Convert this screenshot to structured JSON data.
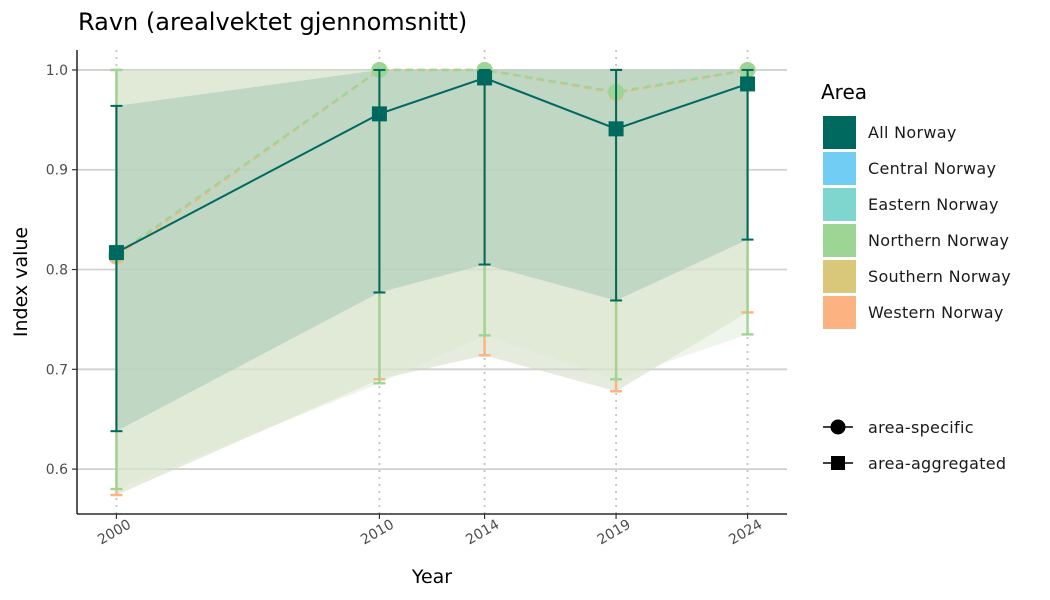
{
  "chart_data": {
    "type": "line",
    "title": "Ravn (arealvektet gjennomsnitt)",
    "xlabel": "Year",
    "ylabel": "Index value",
    "x": [
      2000,
      2010,
      2014,
      2019,
      2024
    ],
    "x_tick_labels": [
      "2000",
      "2010",
      "2014",
      "2019",
      "2024"
    ],
    "y_ticks": [
      0.6,
      0.7,
      0.8,
      0.9,
      1.0
    ],
    "y_tick_labels": [
      "0.6",
      "0.7",
      "0.8",
      "0.9",
      "1.0"
    ],
    "xlim": [
      1998.5,
      2025.5
    ],
    "ylim": [
      0.555,
      1.02
    ],
    "grid": "horizontal major lines; dotted vertical lines at data years",
    "legend": {
      "title": "Area",
      "position": "right",
      "areas": [
        {
          "name": "All Norway",
          "color": "#00695f"
        },
        {
          "name": "Central Norway",
          "color": "#72cdf4"
        },
        {
          "name": "Eastern Norway",
          "color": "#7fd6cf"
        },
        {
          "name": "Northern Norway",
          "color": "#9dd595"
        },
        {
          "name": "Southern Norway",
          "color": "#d9c87a"
        },
        {
          "name": "Western Norway",
          "color": "#fdb281"
        }
      ],
      "shapes": [
        {
          "label": "area-specific",
          "shape": "circle"
        },
        {
          "label": "area-aggregated",
          "shape": "square"
        }
      ]
    },
    "series": [
      {
        "name": "All Norway",
        "kind": "area-aggregated",
        "color": "#00695f",
        "values": [
          0.817,
          0.956,
          0.992,
          0.941,
          0.986
        ],
        "lower": [
          0.638,
          0.777,
          0.805,
          0.769,
          0.83
        ],
        "upper": [
          0.964,
          1.0,
          1.0,
          1.0,
          1.0
        ]
      },
      {
        "name": "Northern Norway",
        "kind": "area-specific",
        "color": "#9dd595",
        "values": [
          0.815,
          1.0,
          1.0,
          0.978,
          1.0
        ],
        "lower": [
          0.58,
          0.686,
          0.734,
          0.69,
          0.735
        ],
        "upper": [
          1.0,
          1.0,
          1.0,
          1.0,
          1.0
        ]
      },
      {
        "name": "Western Norway",
        "kind": "area-specific",
        "color": "#fdb281",
        "values": [
          0.813,
          1.0,
          1.0,
          0.977,
          1.0
        ],
        "lower": [
          0.574,
          0.69,
          0.714,
          0.678,
          0.757
        ],
        "upper": [
          1.0,
          1.0,
          1.0,
          1.0,
          1.0
        ]
      }
    ]
  }
}
